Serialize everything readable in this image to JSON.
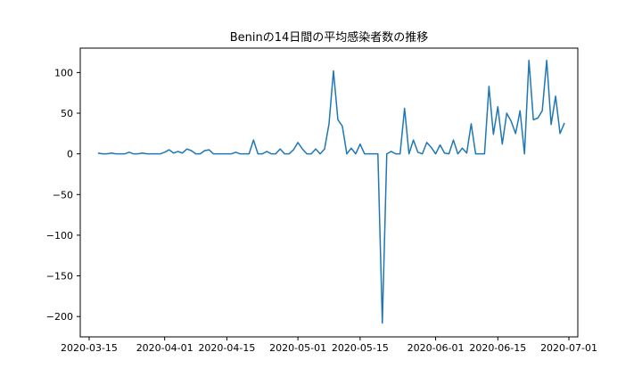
{
  "chart_data": {
    "type": "line",
    "title": "Beninの14日間の平均感染者数の推移",
    "xlabel": "",
    "ylabel": "",
    "line_color": "#1f77b4",
    "grid": false,
    "xlim": [
      "2020-03-13",
      "2020-07-03"
    ],
    "ylim": [
      -225,
      130
    ],
    "x_ticks": [
      "2020-03-15",
      "2020-04-01",
      "2020-04-15",
      "2020-05-01",
      "2020-05-15",
      "2020-06-01",
      "2020-06-15",
      "2020-07-01"
    ],
    "y_ticks": [
      -200,
      -150,
      -100,
      -50,
      0,
      50,
      100
    ],
    "y_tick_labels": [
      "−200",
      "−150",
      "−100",
      "−50",
      "0",
      "50",
      "100"
    ],
    "series": [
      {
        "x": [
          "2020-03-17",
          "2020-03-18",
          "2020-03-19",
          "2020-03-20",
          "2020-03-21",
          "2020-03-22",
          "2020-03-23",
          "2020-03-24",
          "2020-03-25",
          "2020-03-26",
          "2020-03-27",
          "2020-03-28",
          "2020-03-29",
          "2020-03-30",
          "2020-03-31",
          "2020-04-01",
          "2020-04-02",
          "2020-04-03",
          "2020-04-04",
          "2020-04-05",
          "2020-04-06",
          "2020-04-07",
          "2020-04-08",
          "2020-04-09",
          "2020-04-10",
          "2020-04-11",
          "2020-04-12",
          "2020-04-13",
          "2020-04-14",
          "2020-04-15",
          "2020-04-16",
          "2020-04-17",
          "2020-04-18",
          "2020-04-19",
          "2020-04-20",
          "2020-04-21",
          "2020-04-22",
          "2020-04-23",
          "2020-04-24",
          "2020-04-25",
          "2020-04-26",
          "2020-04-27",
          "2020-04-28",
          "2020-04-29",
          "2020-04-30",
          "2020-05-01",
          "2020-05-02",
          "2020-05-03",
          "2020-05-04",
          "2020-05-05",
          "2020-05-06",
          "2020-05-07",
          "2020-05-08",
          "2020-05-09",
          "2020-05-10",
          "2020-05-11",
          "2020-05-12",
          "2020-05-13",
          "2020-05-14",
          "2020-05-15",
          "2020-05-16",
          "2020-05-17",
          "2020-05-18",
          "2020-05-19",
          "2020-05-20",
          "2020-05-21",
          "2020-05-22",
          "2020-05-23",
          "2020-05-24",
          "2020-05-25",
          "2020-05-26",
          "2020-05-27",
          "2020-05-28",
          "2020-05-29",
          "2020-05-30",
          "2020-05-31",
          "2020-06-01",
          "2020-06-02",
          "2020-06-03",
          "2020-06-04",
          "2020-06-05",
          "2020-06-06",
          "2020-06-07",
          "2020-06-08",
          "2020-06-09",
          "2020-06-10",
          "2020-06-11",
          "2020-06-12",
          "2020-06-13",
          "2020-06-14",
          "2020-06-15",
          "2020-06-16",
          "2020-06-17",
          "2020-06-18",
          "2020-06-19",
          "2020-06-20",
          "2020-06-21",
          "2020-06-22",
          "2020-06-23",
          "2020-06-24",
          "2020-06-25",
          "2020-06-26",
          "2020-06-27",
          "2020-06-28",
          "2020-06-29",
          "2020-06-30"
        ],
        "y": [
          1,
          0,
          0,
          1,
          0,
          0,
          0,
          2,
          0,
          0,
          1,
          0,
          0,
          0,
          0,
          2,
          5,
          1,
          3,
          1,
          6,
          4,
          0,
          0,
          4,
          5,
          0,
          0,
          0,
          0,
          0,
          2,
          0,
          0,
          0,
          17,
          0,
          0,
          3,
          0,
          0,
          6,
          0,
          0,
          5,
          14,
          6,
          0,
          0,
          6,
          0,
          6,
          37,
          102,
          42,
          34,
          0,
          7,
          0,
          12,
          0,
          0,
          0,
          0,
          -208,
          0,
          3,
          0,
          0,
          56,
          0,
          17,
          2,
          0,
          14,
          8,
          0,
          11,
          1,
          0,
          17,
          0,
          7,
          1,
          37,
          0,
          0,
          0,
          83,
          24,
          58,
          12,
          50,
          40,
          25,
          53,
          0,
          115,
          42,
          44,
          53,
          115,
          36,
          71,
          25,
          38
        ]
      }
    ]
  }
}
